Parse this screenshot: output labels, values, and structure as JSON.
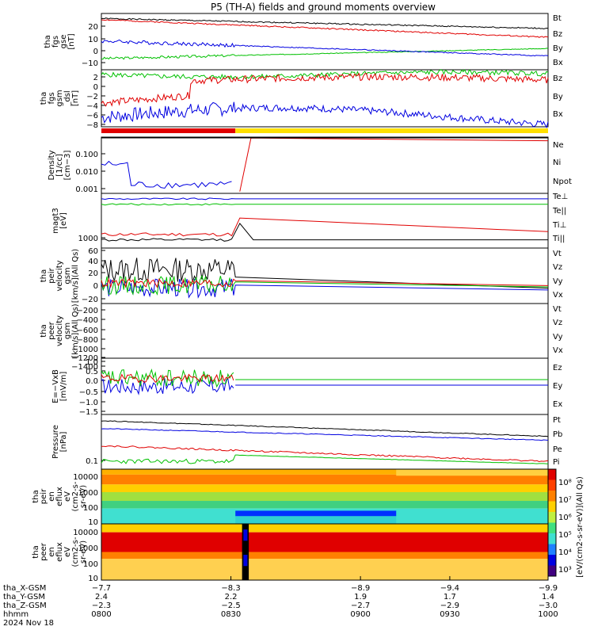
{
  "title": "P5 (TH-A) fields and ground moments overview",
  "panels": [
    {
      "id": "fgs_gse",
      "ylabel": [
        "tha",
        "fgs",
        "gse",
        "[nT]"
      ],
      "ticks": [
        "20",
        "10",
        "0",
        "−10"
      ],
      "legend": [
        {
          "label": "Bt",
          "color": "#000000"
        },
        {
          "label": "Bz",
          "color": "#e00000"
        },
        {
          "label": "By",
          "color": "#00c000"
        },
        {
          "label": "Bx",
          "color": "#0000e0"
        }
      ]
    },
    {
      "id": "fgs_gsm",
      "ylabel": [
        "tha",
        "fgs",
        "gsm",
        "_dsl",
        "[nT]"
      ],
      "ticks": [
        "2",
        "0",
        "−2",
        "−4",
        "−6",
        "−8"
      ],
      "legend": [
        {
          "label": "Bz",
          "color": "#e00000"
        },
        {
          "label": "By",
          "color": "#00c000"
        },
        {
          "label": "Bx",
          "color": "#0000e0"
        }
      ]
    },
    {
      "id": "density",
      "ylabel": [
        "Density",
        "[1/cc]",
        "[cm−3]"
      ],
      "ticks": [
        "0.100",
        "0.010",
        "0.001"
      ],
      "legend": [
        {
          "label": "Ne",
          "color": "#e00000"
        },
        {
          "label": "Ni",
          "color": "#000000"
        },
        {
          "label": "Npot",
          "color": "#0000e0"
        }
      ]
    },
    {
      "id": "temp",
      "ylabel": [
        "magt3",
        "[eV]"
      ],
      "ticks": [
        "1000"
      ],
      "legend": [
        {
          "label": "Te⊥",
          "color": "#e00000"
        },
        {
          "label": "Te||",
          "color": "#000000"
        },
        {
          "label": "Ti⊥",
          "color": "#0000e0"
        },
        {
          "label": "Ti||",
          "color": "#00c000"
        }
      ]
    },
    {
      "id": "peir_vel",
      "ylabel": [
        "tha",
        "peir",
        "velocity",
        "gsm",
        "[km/s](All Qs)"
      ],
      "ticks": [
        "60",
        "40",
        "20",
        "0",
        "−20"
      ],
      "legend": [
        {
          "label": "Vt",
          "color": "#000000"
        },
        {
          "label": "Vz",
          "color": "#e00000"
        },
        {
          "label": "Vy",
          "color": "#00c000"
        },
        {
          "label": "Vx",
          "color": "#0000e0"
        }
      ]
    },
    {
      "id": "peer_vel",
      "ylabel": [
        "tha",
        "peer",
        "velocity",
        "gsm",
        "[km/s](All Qs)"
      ],
      "ticks": [
        "−200",
        "−400",
        "−600",
        "−800",
        "−1000",
        "−1200",
        "−1400"
      ],
      "legend": [
        {
          "label": "Vt",
          "color": "#000000"
        },
        {
          "label": "Vz",
          "color": "#e00000"
        },
        {
          "label": "Vy",
          "color": "#00c000"
        },
        {
          "label": "Vx",
          "color": "#0000e0"
        }
      ]
    },
    {
      "id": "efield",
      "ylabel": [
        "E=−VxB",
        "[mV/m]"
      ],
      "ticks": [
        "1.0",
        "0.5",
        "0.0",
        "−0.5",
        "−1.0",
        "−1.5"
      ],
      "legend": [
        {
          "label": "Ez",
          "color": "#e00000"
        },
        {
          "label": "Ey",
          "color": "#00c000"
        },
        {
          "label": "Ex",
          "color": "#0000e0"
        }
      ]
    },
    {
      "id": "pressure",
      "ylabel": [
        "Pressure",
        "[nPa]"
      ],
      "ticks": [
        "0.1"
      ],
      "legend": [
        {
          "label": "Pt",
          "color": "#000000"
        },
        {
          "label": "Pb",
          "color": "#e00000"
        },
        {
          "label": "Pe",
          "color": "#00c000"
        },
        {
          "label": "Pi",
          "color": "#0000e0"
        }
      ]
    },
    {
      "id": "peir_eflux",
      "ylabel": [
        "tha",
        "peir",
        "en",
        "eflux",
        "eV",
        "(cm2-s-",
        "sr-eV)"
      ],
      "ticks": [
        "10000",
        "1000",
        "100",
        "10"
      ]
    },
    {
      "id": "peer_eflux",
      "ylabel": [
        "tha",
        "peer",
        "en",
        "eflux",
        "eV",
        "(cm2-s-",
        "sr-eV)"
      ],
      "ticks": [
        "10000",
        "1000",
        "100",
        "10"
      ]
    }
  ],
  "colorbar": {
    "label": "[eV/(cm2-s-sr-eV)](All Qs)",
    "ticks": [
      "10⁸",
      "10⁷",
      "10⁶",
      "10⁵",
      "10⁴",
      "10³"
    ]
  },
  "time_axis": {
    "rows": [
      {
        "label": "tha_X-GSM",
        "values": [
          "−7.7",
          "−8.3",
          "−8.9",
          "−9.4",
          "−9.9"
        ]
      },
      {
        "label": "tha_Y-GSM",
        "values": [
          "2.4",
          "2.2",
          "1.9",
          "1.7",
          "1.4"
        ]
      },
      {
        "label": "tha_Z-GSM",
        "values": [
          "−2.3",
          "−2.5",
          "−2.7",
          "−2.9",
          "−3.0"
        ]
      },
      {
        "label": "hhmm",
        "values": [
          "0800",
          "0830",
          "0900",
          "0930",
          "1000"
        ]
      }
    ],
    "date": "2024 Nov 18"
  },
  "chart_data": {
    "type": "line",
    "title": "P5 (TH-A) fields and ground moments overview",
    "x_ticks": [
      "0800",
      "0830",
      "0900",
      "0930",
      "1000"
    ],
    "xlim": [
      "0800",
      "1000"
    ],
    "series": [
      {
        "panel": "fgs_gse",
        "name": "Bt",
        "values": [
          27,
          25,
          24,
          23,
          20,
          18
        ]
      },
      {
        "panel": "fgs_gse",
        "name": "Bz",
        "values": [
          25,
          24,
          22,
          20,
          17,
          14
        ]
      },
      {
        "panel": "fgs_gse",
        "name": "By",
        "values": [
          -6,
          -5,
          -3,
          -2,
          0,
          2
        ]
      },
      {
        "panel": "fgs_gse",
        "name": "Bx",
        "values": [
          8,
          6,
          4,
          2,
          0,
          -2
        ]
      },
      {
        "panel": "density",
        "name": "Ne",
        "values": [
          null,
          null,
          0.4,
          0.3,
          0.3,
          0.2
        ]
      },
      {
        "panel": "pressure",
        "name": "Pt",
        "values": [
          0.4,
          0.38,
          0.34,
          0.3,
          0.27,
          0.24
        ]
      }
    ],
    "spectrogram_ylim": [
      10,
      10000
    ],
    "colorbar_range": [
      "10³",
      "10⁸"
    ]
  }
}
